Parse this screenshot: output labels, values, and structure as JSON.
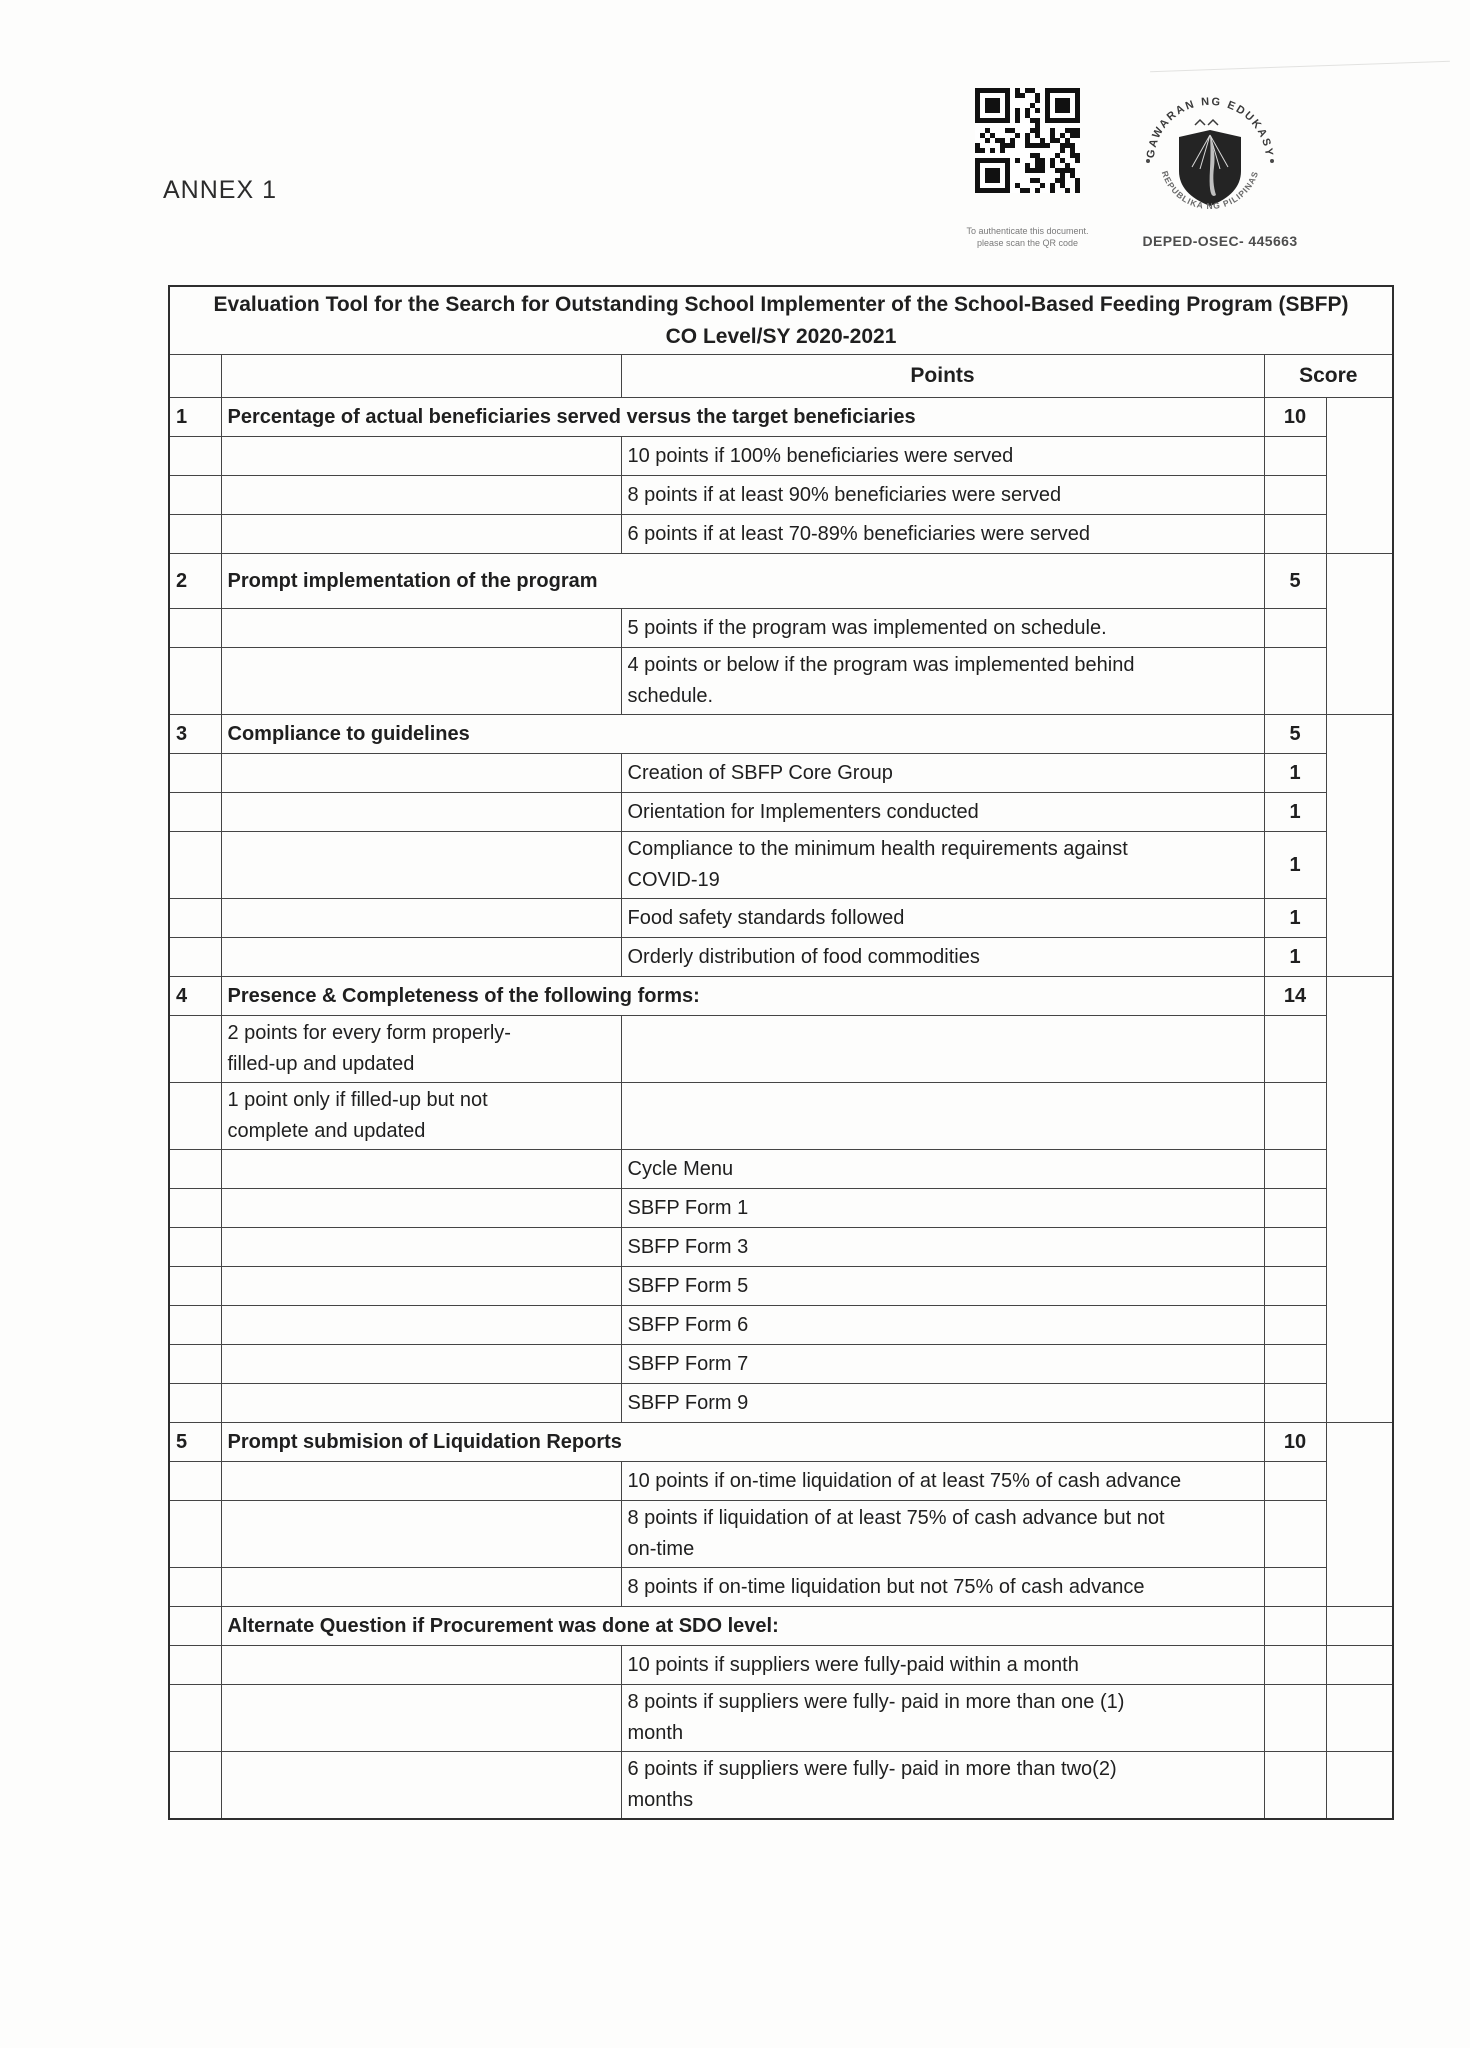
{
  "page": {
    "annex_label": "ANNEX 1",
    "qr_caption_line1": "To authenticate this document.",
    "qr_caption_line2": "please scan the QR code",
    "doc_code": "DEPED-OSEC- 445663",
    "seal_text_top": "KAGAWARAN NG EDUKASYON",
    "seal_text_bottom": "REPUBLIKA NG PILIPINAS"
  },
  "table": {
    "title_line1": "Evaluation Tool for the Search for Outstanding School Implementer of the School-Based Feeding Program (SBFP)",
    "title_line2": "CO Level/SY 2020-2021",
    "headers": {
      "points": "Points",
      "score": "Score"
    },
    "rows": [
      {
        "type": "section",
        "num": "1",
        "title": "Percentage of actual beneficiaries served versus the target beneficiaries",
        "points": "10",
        "span": 4
      },
      {
        "type": "desc",
        "desc": "10 points if 100% beneficiaries were served",
        "points": ""
      },
      {
        "type": "desc",
        "desc": "8 points if at least 90% beneficiaries were served",
        "points": ""
      },
      {
        "type": "desc",
        "desc": "6 points if at least 70-89% beneficiaries were served",
        "points": ""
      },
      {
        "type": "section",
        "num": "2",
        "title": "Prompt implementation of the program",
        "points": "5",
        "span": 3,
        "tall": true
      },
      {
        "type": "desc",
        "desc": "5 points if the program was implemented on schedule.",
        "points": ""
      },
      {
        "type": "desc",
        "desc": "4 points or below if the program was implemented behind\nschedule.",
        "points": ""
      },
      {
        "type": "section",
        "num": "3",
        "title": "Compliance to guidelines",
        "points": "5",
        "span": 6
      },
      {
        "type": "desc",
        "desc": "Creation of SBFP Core Group",
        "points": "1"
      },
      {
        "type": "desc",
        "desc": "Orientation for Implementers conducted",
        "points": "1"
      },
      {
        "type": "desc",
        "desc": "Compliance to the minimum health requirements against\nCOVID-19",
        "points": "1",
        "points_pos": "bottom"
      },
      {
        "type": "desc",
        "desc": "Food safety standards followed",
        "points": "1"
      },
      {
        "type": "desc",
        "desc": "Orderly distribution of food commodities",
        "points": "1"
      },
      {
        "type": "section",
        "num": "4",
        "title": "Presence & Completeness of the following forms:",
        "points": "14",
        "span": 10
      },
      {
        "type": "note",
        "note": "2 points for every form properly-\nfilled-up and updated"
      },
      {
        "type": "note",
        "note": "1 point only if filled-up but not\ncomplete and updated"
      },
      {
        "type": "desc",
        "desc": "Cycle Menu",
        "points": ""
      },
      {
        "type": "desc",
        "desc": "SBFP Form 1",
        "points": ""
      },
      {
        "type": "desc",
        "desc": "SBFP Form 3",
        "points": ""
      },
      {
        "type": "desc",
        "desc": "SBFP Form 5",
        "points": ""
      },
      {
        "type": "desc",
        "desc": "SBFP Form 6",
        "points": ""
      },
      {
        "type": "desc",
        "desc": "SBFP Form 7",
        "points": ""
      },
      {
        "type": "desc",
        "desc": "SBFP Form 9",
        "points": ""
      },
      {
        "type": "section",
        "num": "5",
        "title": "Prompt submision of Liquidation Reports",
        "points": "10",
        "span": 4
      },
      {
        "type": "desc",
        "desc": "10 points if on-time liquidation of at least 75% of cash advance",
        "points": ""
      },
      {
        "type": "desc",
        "desc": "8 points if liquidation of at least 75% of cash advance but not\non-time",
        "points": ""
      },
      {
        "type": "desc",
        "desc": "8 points if on-time liquidation but not 75% of cash advance",
        "points": ""
      },
      {
        "type": "althead",
        "title": "Alternate Question if Procurement was done at SDO level:"
      },
      {
        "type": "altdesc",
        "desc": "10 points if suppliers were fully-paid within a month"
      },
      {
        "type": "altdesc",
        "desc": "8 points if suppliers were fully- paid in more than one (1)\nmonth"
      },
      {
        "type": "altdesc",
        "desc": "6 points if suppliers were fully- paid in more than two(2)\nmonths"
      }
    ]
  }
}
